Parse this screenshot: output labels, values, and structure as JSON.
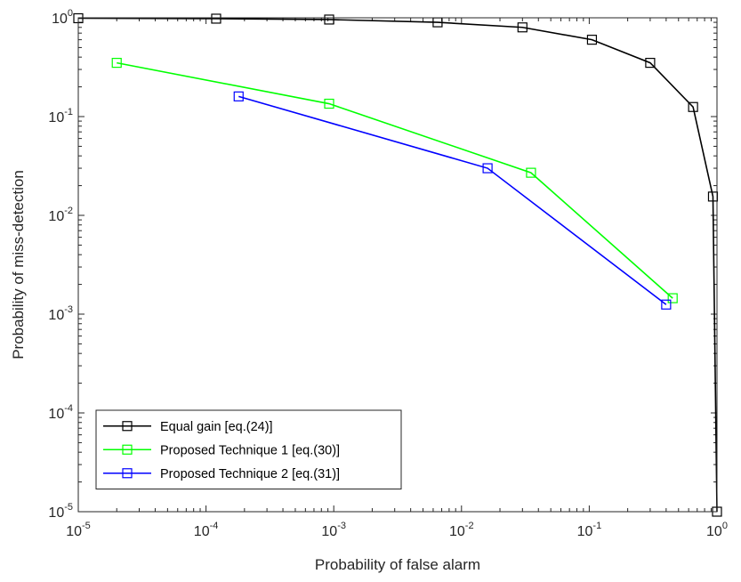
{
  "chart_data": {
    "type": "line",
    "xscale": "log",
    "yscale": "log",
    "xlim": [
      1e-05,
      1
    ],
    "ylim": [
      1e-05,
      1
    ],
    "xlabel": "Probability of false alarm",
    "ylabel": "Probability of miss-detection",
    "x_ticks": [
      {
        "value": 1e-05,
        "base": "10",
        "exp": "-5"
      },
      {
        "value": 0.0001,
        "base": "10",
        "exp": "-4"
      },
      {
        "value": 0.001,
        "base": "10",
        "exp": "-3"
      },
      {
        "value": 0.01,
        "base": "10",
        "exp": "-2"
      },
      {
        "value": 0.1,
        "base": "10",
        "exp": "-1"
      },
      {
        "value": 1,
        "base": "10",
        "exp": "0"
      }
    ],
    "y_ticks": [
      {
        "value": 1e-05,
        "base": "10",
        "exp": "-5"
      },
      {
        "value": 0.0001,
        "base": "10",
        "exp": "-4"
      },
      {
        "value": 0.001,
        "base": "10",
        "exp": "-3"
      },
      {
        "value": 0.01,
        "base": "10",
        "exp": "-2"
      },
      {
        "value": 0.1,
        "base": "10",
        "exp": "-1"
      },
      {
        "value": 1,
        "base": "10",
        "exp": "0"
      }
    ],
    "legend_position": "bottom-left",
    "grid": false,
    "series": [
      {
        "name": "Equal gain [eq.(24)]",
        "color": "#000000",
        "marker": "square",
        "x": [
          1e-05,
          0.00012,
          0.00092,
          0.0065,
          0.03,
          0.105,
          0.3,
          0.65,
          0.93,
          1.0
        ],
        "y": [
          0.99,
          0.98,
          0.96,
          0.9,
          0.8,
          0.6,
          0.35,
          0.125,
          0.0155,
          1e-05
        ]
      },
      {
        "name": "Proposed Technique 1 [eq.(30)]",
        "color": "#00ff00",
        "marker": "square",
        "x": [
          2e-05,
          0.00092,
          0.035,
          0.45
        ],
        "y": [
          0.35,
          0.135,
          0.027,
          0.00145
        ]
      },
      {
        "name": "Proposed Technique 2 [eq.(31)]",
        "color": "#0000ff",
        "marker": "square",
        "x": [
          0.00018,
          0.016,
          0.4
        ],
        "y": [
          0.16,
          0.03,
          0.00125
        ]
      }
    ]
  }
}
